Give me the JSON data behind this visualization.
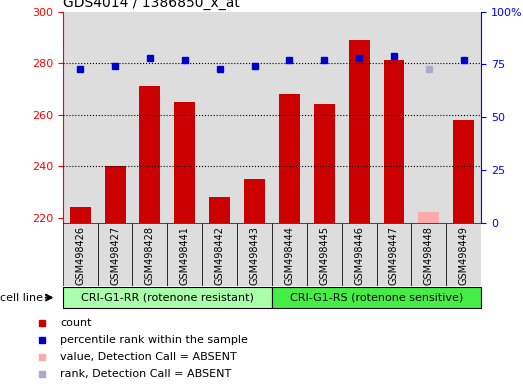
{
  "title": "GDS4014 / 1386850_x_at",
  "samples": [
    "GSM498426",
    "GSM498427",
    "GSM498428",
    "GSM498441",
    "GSM498442",
    "GSM498443",
    "GSM498444",
    "GSM498445",
    "GSM498446",
    "GSM498447",
    "GSM498448",
    "GSM498449"
  ],
  "counts": [
    224,
    240,
    271,
    265,
    228,
    235,
    268,
    264,
    289,
    281,
    222,
    258
  ],
  "percentile_ranks": [
    73,
    74,
    78,
    77,
    73,
    74,
    77,
    77,
    78,
    79,
    73,
    77
  ],
  "absent_flags": [
    false,
    false,
    false,
    false,
    false,
    false,
    false,
    false,
    false,
    false,
    true,
    false
  ],
  "group1_label": "CRI-G1-RR (rotenone resistant)",
  "group2_label": "CRI-G1-RS (rotenone sensitive)",
  "group1_count": 6,
  "group2_count": 6,
  "ylim_left": [
    218,
    300
  ],
  "ylim_right": [
    0,
    100
  ],
  "yticks_left": [
    220,
    240,
    260,
    280,
    300
  ],
  "yticks_right": [
    0,
    25,
    50,
    75,
    100
  ],
  "bar_color": "#cc0000",
  "rank_color": "#0000cc",
  "absent_bar_color": "#ffaaaa",
  "absent_rank_color": "#aaaacc",
  "group1_bg": "#aaffaa",
  "group2_bg": "#44ee44",
  "col_bg": "#dddddd",
  "plot_bg": "#ffffff"
}
